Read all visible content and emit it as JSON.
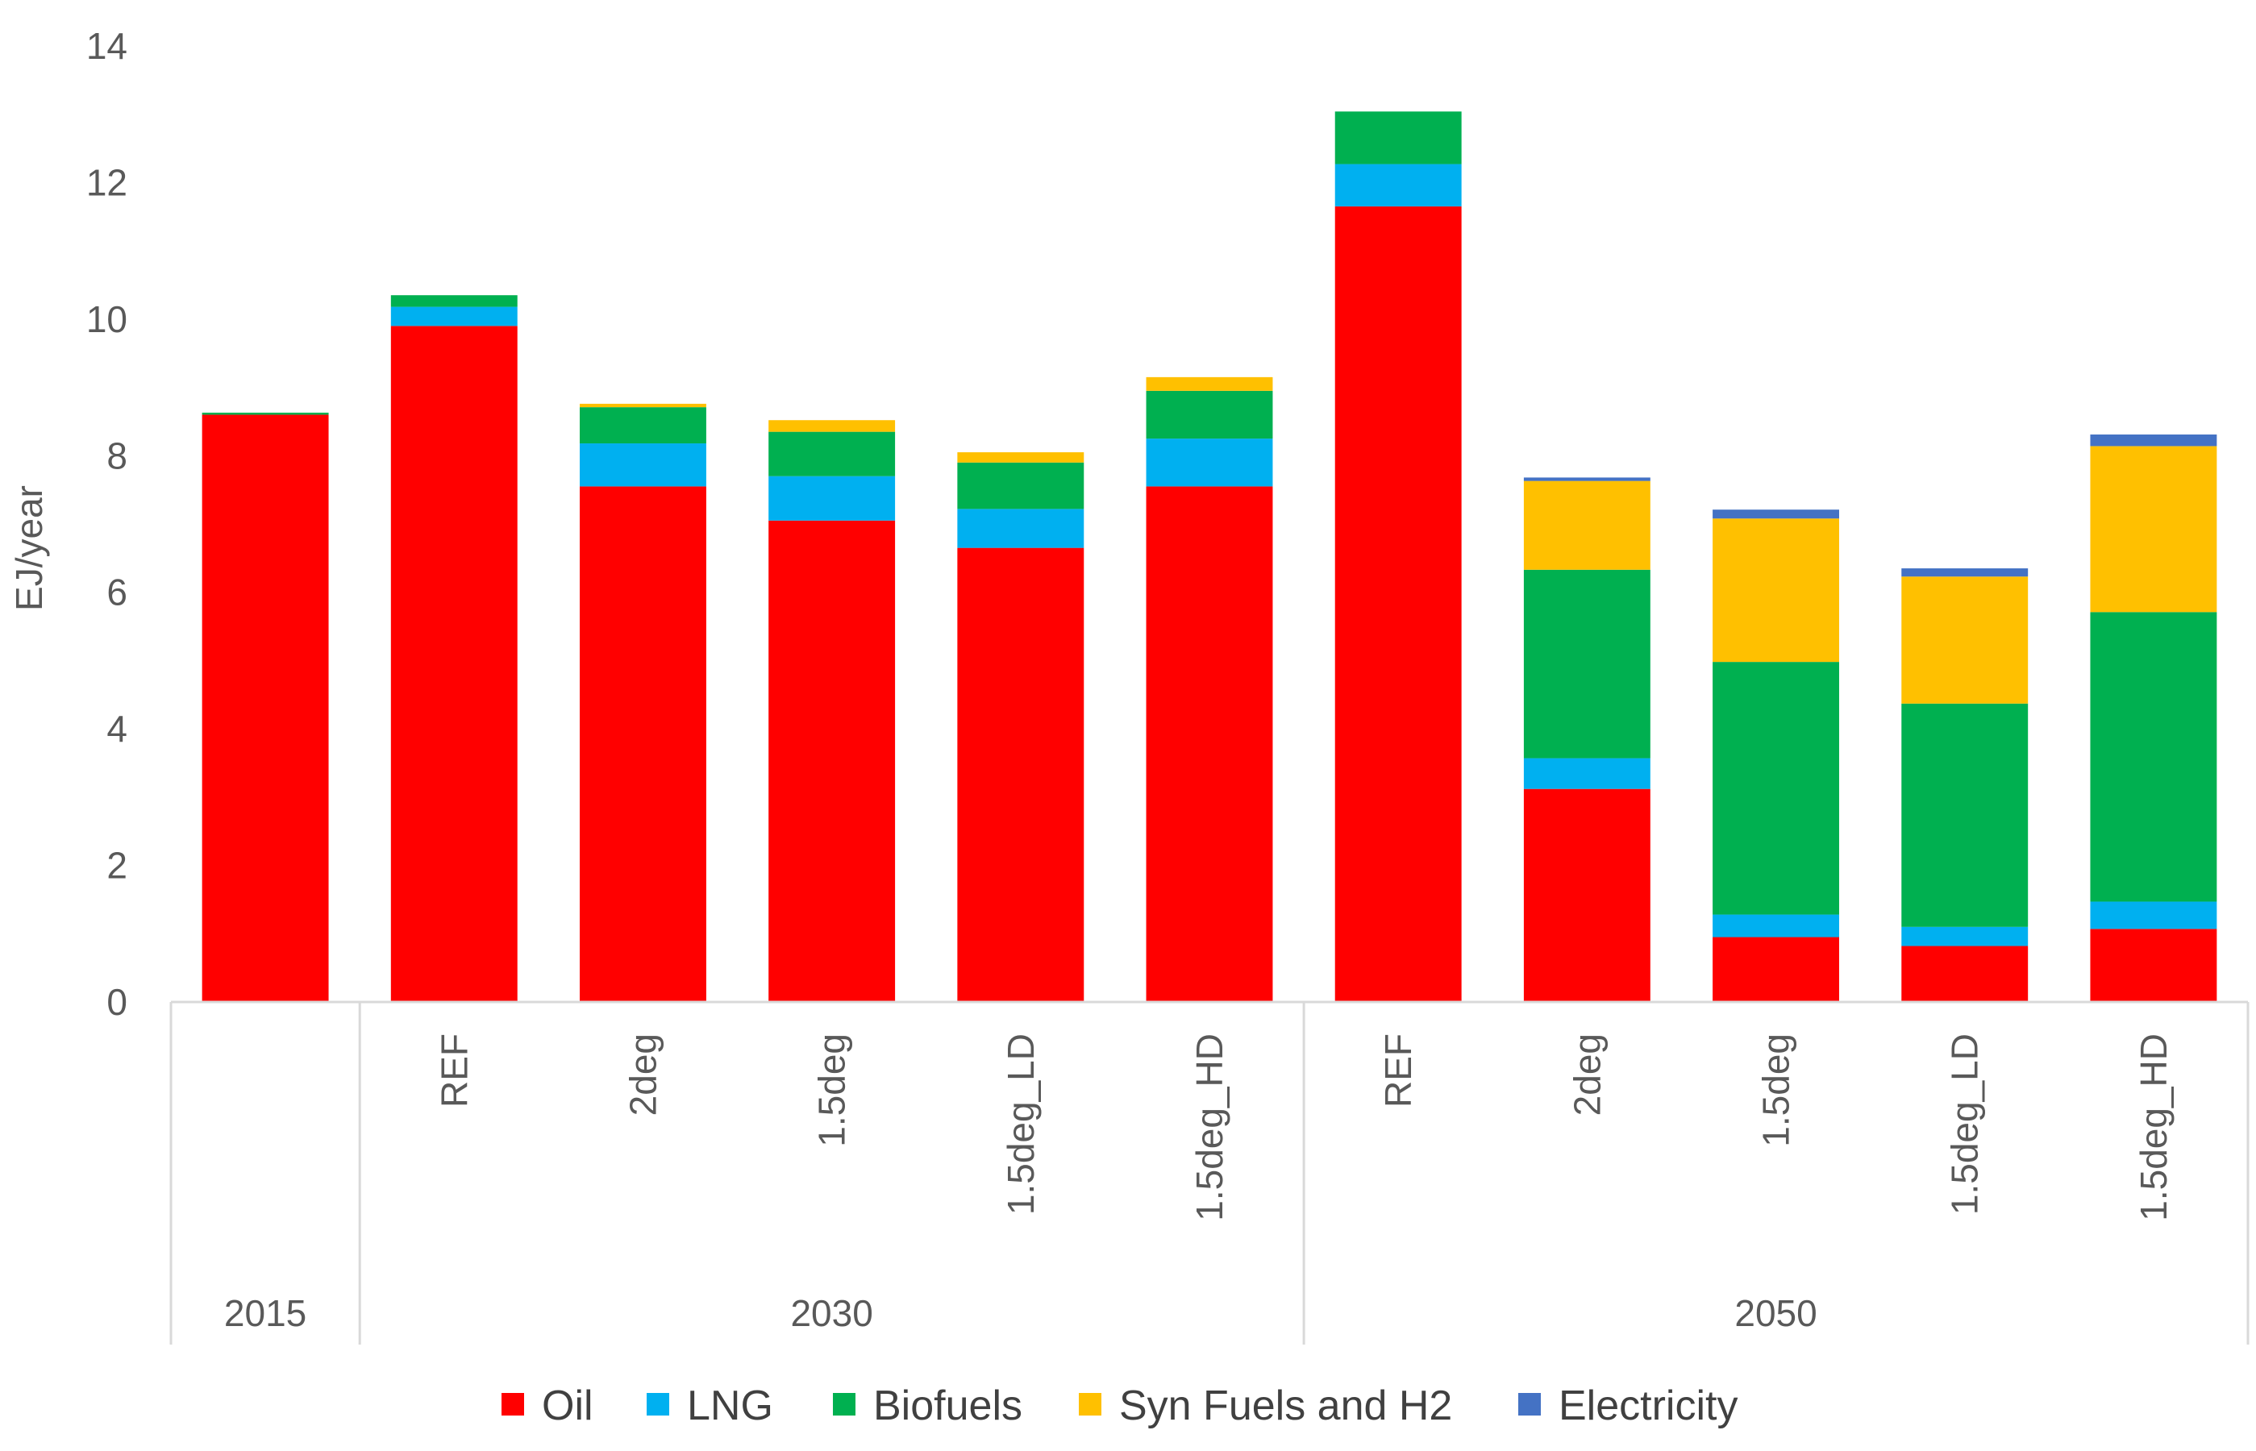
{
  "chart_data": {
    "type": "bar",
    "stacked": true,
    "title": "",
    "xlabel": "",
    "ylabel": "EJ/year",
    "ylim": [
      0,
      14
    ],
    "yticks": [
      0,
      2,
      4,
      6,
      8,
      10,
      12,
      14
    ],
    "grid": false,
    "legend_position": "bottom",
    "groups": [
      {
        "label": "2015",
        "categories": [
          ""
        ]
      },
      {
        "label": "2030",
        "categories": [
          "REF",
          "2deg",
          "1.5deg",
          "1.5deg_LD",
          "1.5deg_HD"
        ]
      },
      {
        "label": "2050",
        "categories": [
          "REF",
          "2deg",
          "1.5deg",
          "1.5deg_LD",
          "1.5deg_HD"
        ]
      }
    ],
    "series": [
      {
        "name": "Oil",
        "color": "#ff0000",
        "values": [
          8.6,
          9.9,
          7.55,
          7.05,
          6.65,
          7.55,
          11.65,
          3.12,
          0.95,
          0.82,
          1.07
        ]
      },
      {
        "name": "LNG",
        "color": "#00b0f0",
        "values": [
          0.0,
          0.28,
          0.63,
          0.65,
          0.57,
          0.7,
          0.62,
          0.45,
          0.33,
          0.28,
          0.4
        ]
      },
      {
        "name": "Biofuels",
        "color": "#00b050",
        "values": [
          0.03,
          0.17,
          0.53,
          0.65,
          0.68,
          0.7,
          0.77,
          2.76,
          3.7,
          3.27,
          4.24
        ]
      },
      {
        "name": "Syn Fuels and H2",
        "color": "#ffc000",
        "values": [
          0.0,
          0.0,
          0.05,
          0.17,
          0.15,
          0.2,
          0.0,
          1.3,
          2.1,
          1.86,
          2.43
        ]
      },
      {
        "name": "Electricity",
        "color": "#4472c4",
        "values": [
          0.0,
          0.0,
          0.0,
          0.0,
          0.0,
          0.0,
          0.0,
          0.05,
          0.13,
          0.12,
          0.17
        ]
      }
    ]
  }
}
